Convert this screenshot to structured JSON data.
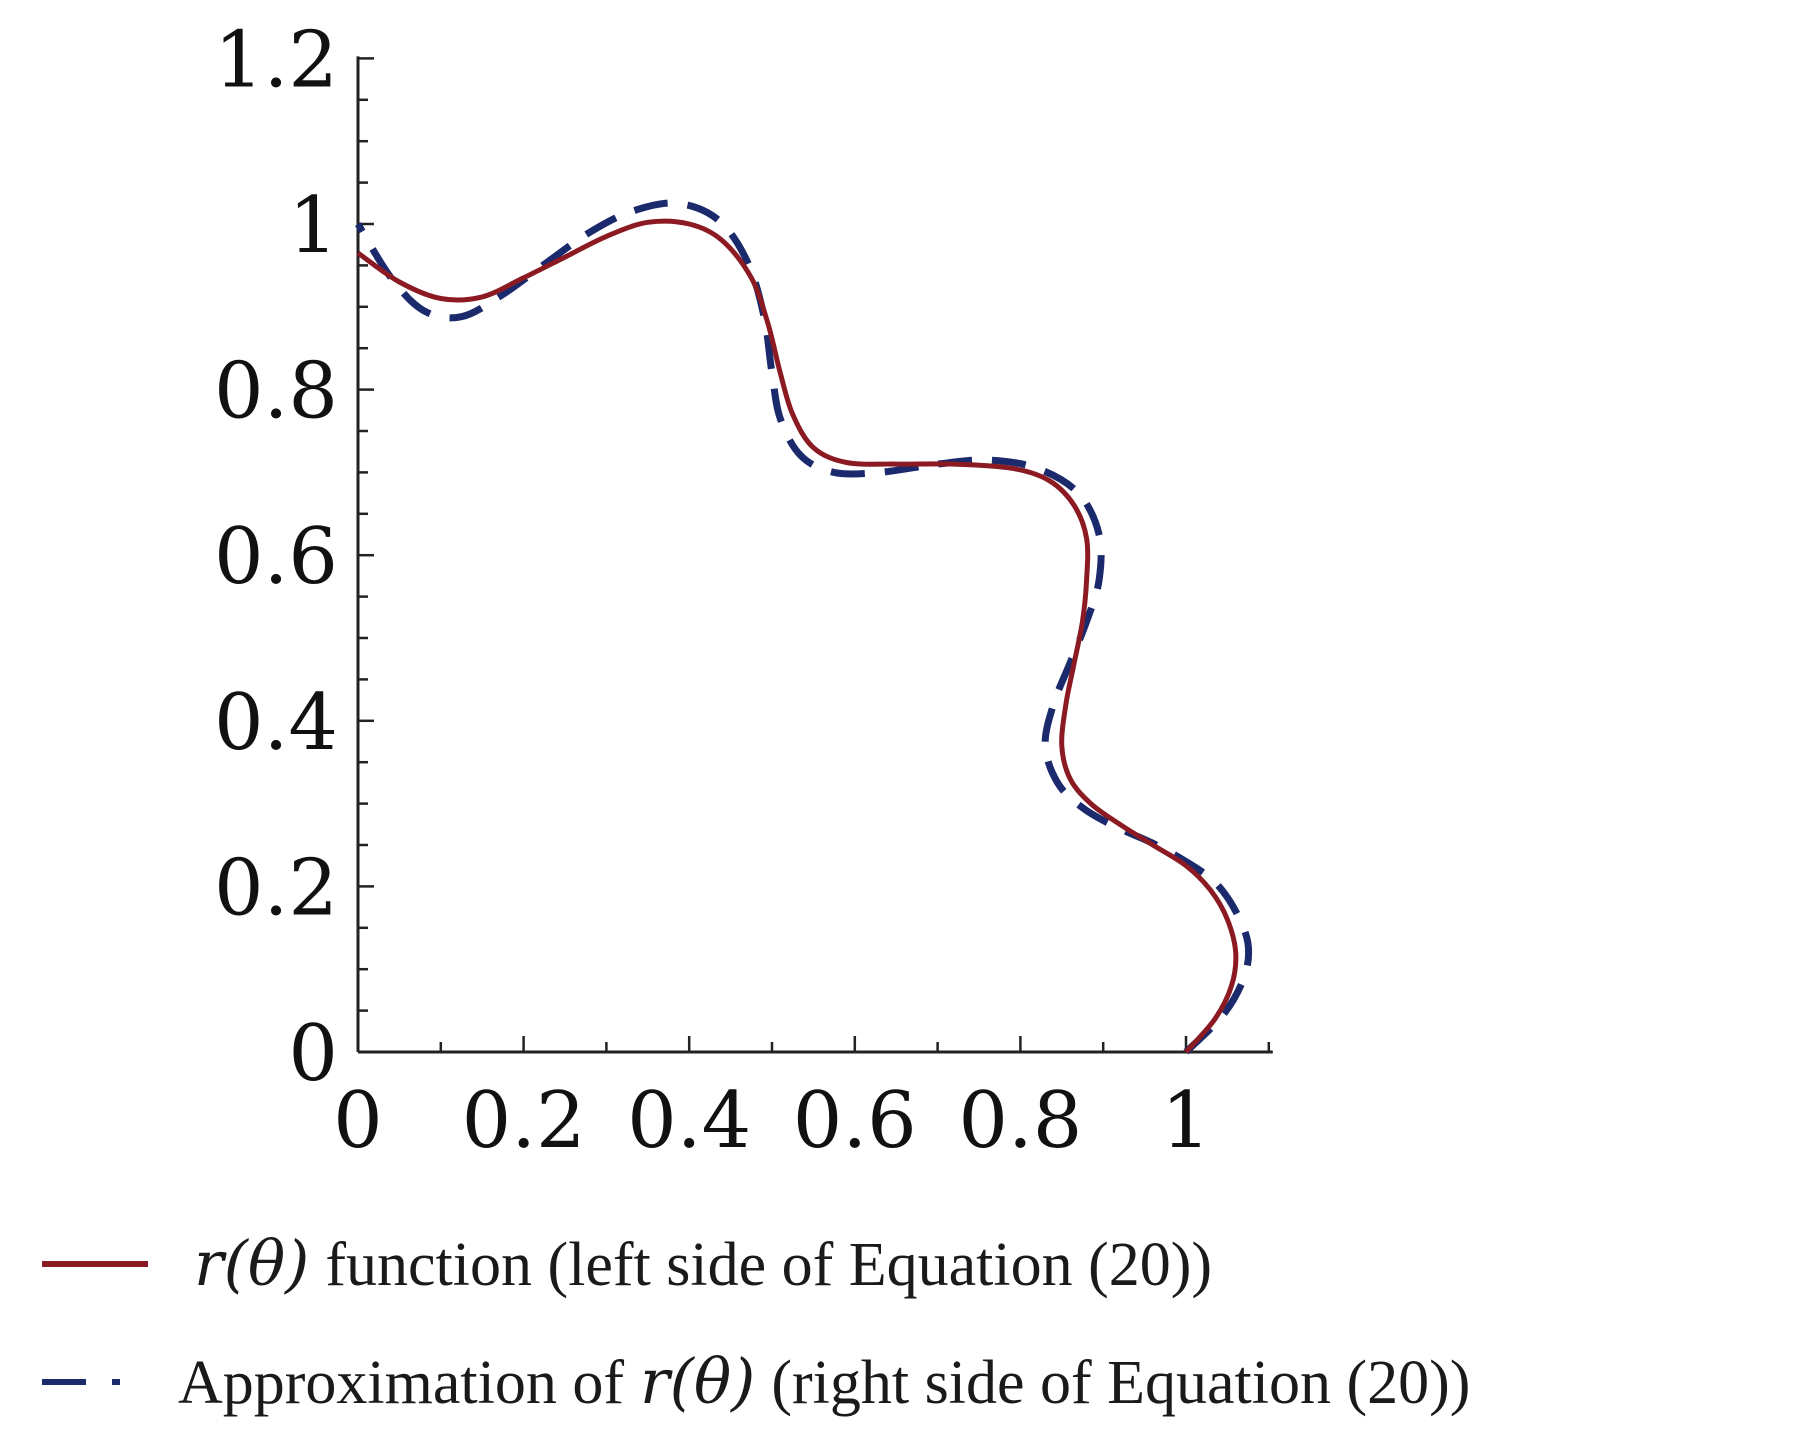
{
  "chart_data": {
    "type": "line",
    "title": "",
    "xlabel": "",
    "ylabel": "",
    "xlim": [
      0,
      1.1
    ],
    "ylim": [
      0,
      1.2
    ],
    "x_ticks": [
      0,
      0.2,
      0.4,
      0.6,
      0.8,
      1
    ],
    "x_tick_labels": [
      "0",
      "0.2",
      "0.4",
      "0.6",
      "0.8",
      "1"
    ],
    "y_ticks": [
      0,
      0.2,
      0.4,
      0.6,
      0.8,
      1,
      1.2
    ],
    "y_tick_labels": [
      "0",
      "0.2",
      "0.4",
      "0.6",
      "0.8",
      "1",
      "1.2"
    ],
    "minor_tick_step": 0.1,
    "minor_y_tick_step": 0.05,
    "grid": false,
    "legend_placement": "bottom",
    "series": [
      {
        "name": "r(θ) function (left side of Equation (20))",
        "legend_prefix": "",
        "legend_math": "r(θ)",
        "legend_suffix": "function (left side of Equation (20))",
        "color": "#8b1a22",
        "dash": "solid",
        "points": [
          [
            1.0,
            0.0
          ],
          [
            1.035,
            0.04
          ],
          [
            1.055,
            0.08
          ],
          [
            1.06,
            0.12
          ],
          [
            1.05,
            0.16
          ],
          [
            1.03,
            0.195
          ],
          [
            1.0,
            0.225
          ],
          [
            0.96,
            0.25
          ],
          [
            0.92,
            0.275
          ],
          [
            0.885,
            0.3
          ],
          [
            0.86,
            0.33
          ],
          [
            0.85,
            0.37
          ],
          [
            0.855,
            0.42
          ],
          [
            0.865,
            0.47
          ],
          [
            0.875,
            0.52
          ],
          [
            0.88,
            0.57
          ],
          [
            0.88,
            0.62
          ],
          [
            0.865,
            0.66
          ],
          [
            0.835,
            0.69
          ],
          [
            0.79,
            0.705
          ],
          [
            0.72,
            0.71
          ],
          [
            0.65,
            0.71
          ],
          [
            0.59,
            0.712
          ],
          [
            0.55,
            0.73
          ],
          [
            0.525,
            0.77
          ],
          [
            0.51,
            0.82
          ],
          [
            0.495,
            0.88
          ],
          [
            0.475,
            0.935
          ],
          [
            0.44,
            0.98
          ],
          [
            0.4,
            1.0
          ],
          [
            0.35,
            1.002
          ],
          [
            0.3,
            0.985
          ],
          [
            0.25,
            0.96
          ],
          [
            0.2,
            0.935
          ],
          [
            0.15,
            0.912
          ],
          [
            0.1,
            0.91
          ],
          [
            0.05,
            0.93
          ],
          [
            0.0,
            0.965
          ]
        ]
      },
      {
        "name": "Approximation of r(θ) (right side of Equation (20))",
        "legend_prefix": "Approximation of",
        "legend_math": "r(θ)",
        "legend_suffix": "(right side of Equation (20))",
        "color": "#1a2a6c",
        "dash": "dashed",
        "points": [
          [
            1.0,
            0.0
          ],
          [
            1.045,
            0.045
          ],
          [
            1.07,
            0.09
          ],
          [
            1.075,
            0.13
          ],
          [
            1.06,
            0.17
          ],
          [
            1.035,
            0.205
          ],
          [
            1.0,
            0.23
          ],
          [
            0.96,
            0.252
          ],
          [
            0.915,
            0.272
          ],
          [
            0.875,
            0.295
          ],
          [
            0.845,
            0.325
          ],
          [
            0.83,
            0.37
          ],
          [
            0.84,
            0.42
          ],
          [
            0.86,
            0.47
          ],
          [
            0.88,
            0.52
          ],
          [
            0.895,
            0.57
          ],
          [
            0.895,
            0.625
          ],
          [
            0.87,
            0.675
          ],
          [
            0.82,
            0.705
          ],
          [
            0.76,
            0.715
          ],
          [
            0.7,
            0.71
          ],
          [
            0.63,
            0.7
          ],
          [
            0.575,
            0.7
          ],
          [
            0.535,
            0.72
          ],
          [
            0.51,
            0.765
          ],
          [
            0.5,
            0.82
          ],
          [
            0.49,
            0.89
          ],
          [
            0.47,
            0.955
          ],
          [
            0.435,
            1.005
          ],
          [
            0.385,
            1.025
          ],
          [
            0.33,
            1.015
          ],
          [
            0.28,
            0.99
          ],
          [
            0.23,
            0.955
          ],
          [
            0.175,
            0.915
          ],
          [
            0.125,
            0.888
          ],
          [
            0.08,
            0.895
          ],
          [
            0.04,
            0.935
          ],
          [
            0.0,
            1.0
          ]
        ]
      }
    ]
  }
}
